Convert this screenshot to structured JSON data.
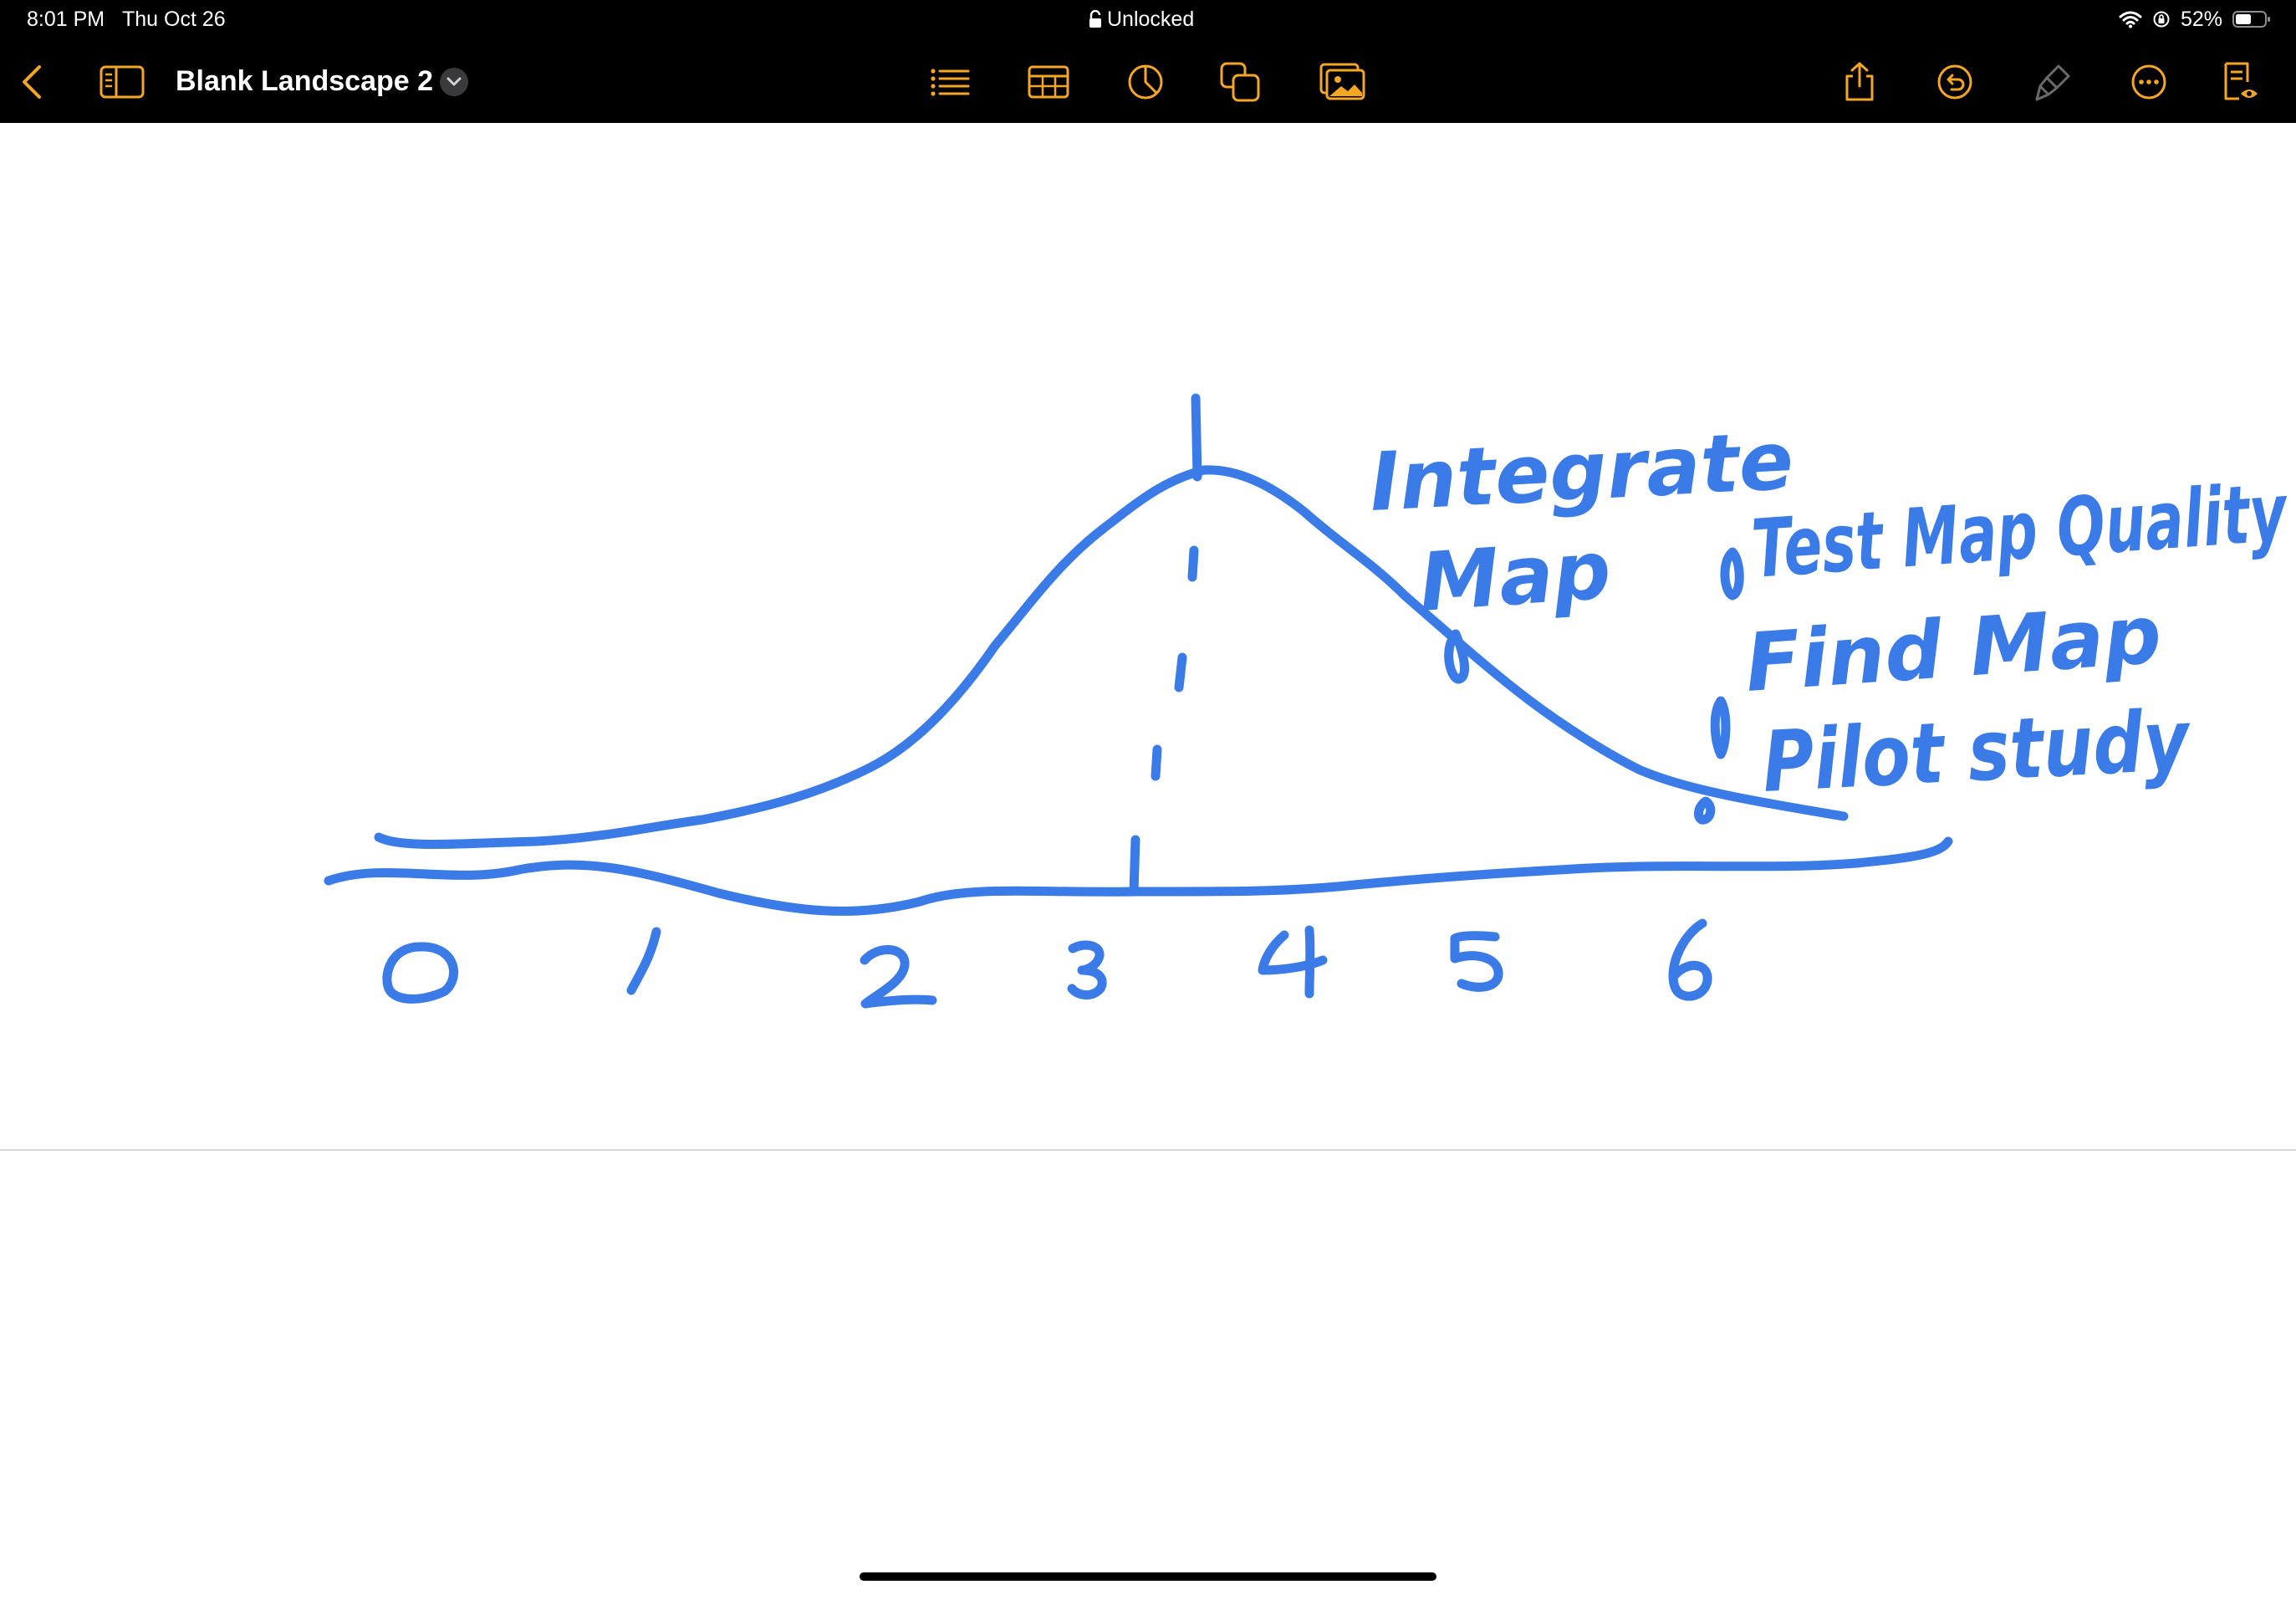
{
  "status_bar": {
    "time": "8:01 PM",
    "date": "Thu Oct 26",
    "lock_label": "Unlocked",
    "battery": "52%"
  },
  "toolbar": {
    "document_title": "Blank Landscape 2",
    "accent_color": "#F5A623",
    "icons": [
      "back-chevron-icon",
      "sidebar-icon",
      "list-icon",
      "table-icon",
      "chart-icon",
      "shapes-icon",
      "media-icon",
      "share-icon",
      "undo-icon",
      "format-brush-icon",
      "more-icon",
      "reading-view-icon"
    ]
  },
  "sketch": {
    "ink_color": "#3B7BE8",
    "axis_labels": [
      "0",
      "1",
      "2",
      "3",
      "4",
      "5",
      "6"
    ],
    "annotations": {
      "integrate": "Integrate",
      "map": "Map",
      "bullet1": "Test Map Quality",
      "bullet2": "Find Map",
      "bullet3": "Pilot study"
    }
  }
}
